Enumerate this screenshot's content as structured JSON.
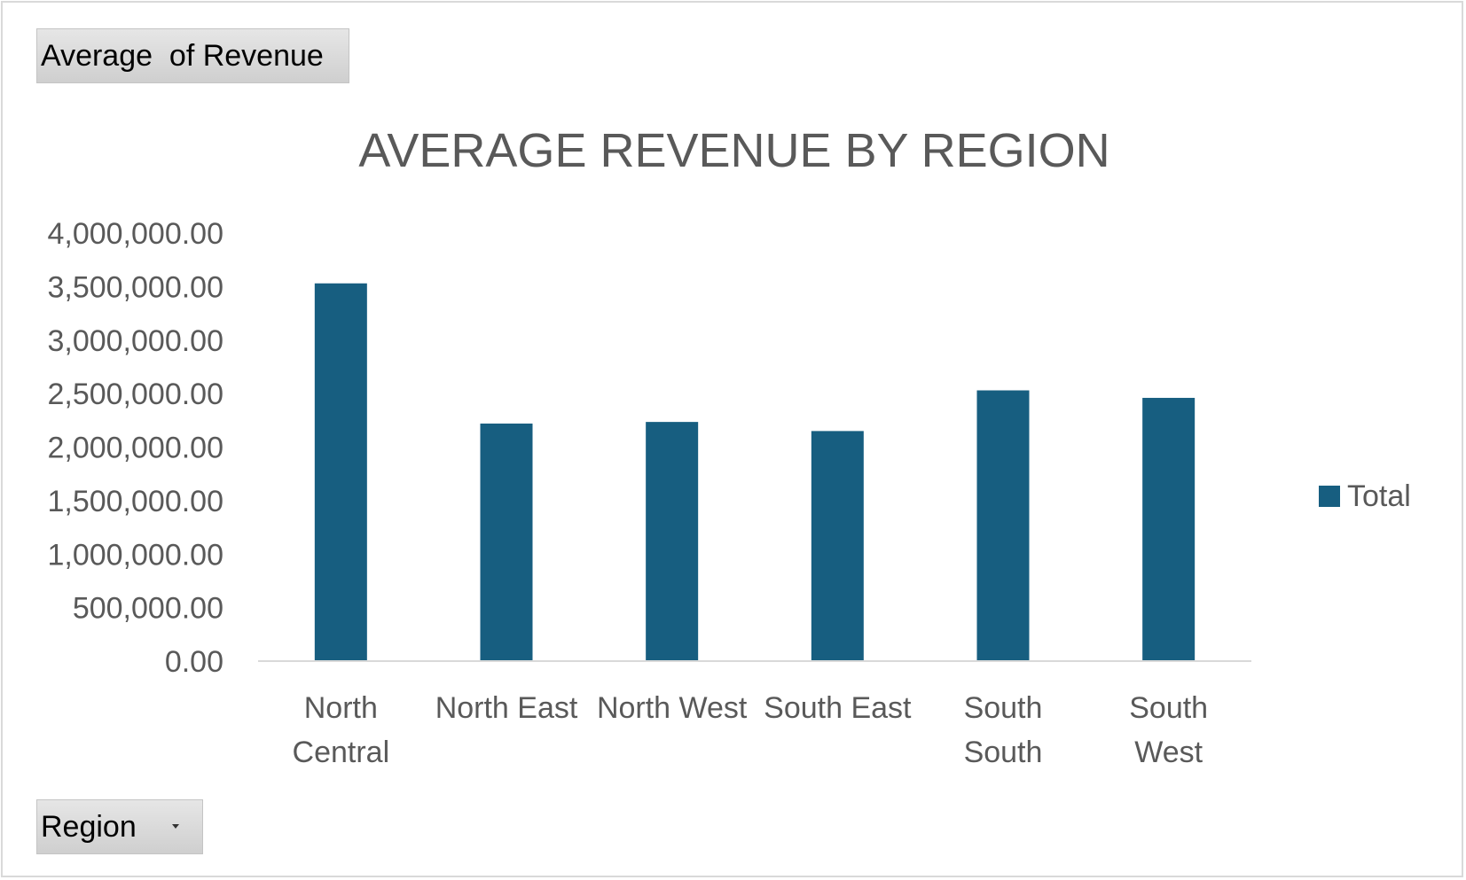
{
  "values_field": {
    "label": "Average  of Revenue"
  },
  "axis_field": {
    "label": "Region"
  },
  "chart_data": {
    "type": "bar",
    "title": "AVERAGE REVENUE BY REGION",
    "categories": [
      [
        "North",
        "Central"
      ],
      [
        "North East"
      ],
      [
        "North West"
      ],
      [
        "South East"
      ],
      [
        "South",
        "South"
      ],
      [
        "South",
        "West"
      ]
    ],
    "series": [
      {
        "name": "Total",
        "color": "#175E80",
        "values": [
          3530000,
          2220000,
          2235000,
          2150000,
          2530000,
          2460000
        ]
      }
    ],
    "ylim": [
      0,
      4000000
    ],
    "yticks": [
      0,
      500000,
      1000000,
      1500000,
      2000000,
      2500000,
      3000000,
      3500000,
      4000000
    ],
    "ytick_labels": [
      "0.00",
      "500,000.00",
      "1,000,000.00",
      "1,500,000.00",
      "2,000,000.00",
      "2,500,000.00",
      "3,000,000.00",
      "3,500,000.00",
      "4,000,000.00"
    ],
    "grid": false,
    "legend": "right"
  }
}
